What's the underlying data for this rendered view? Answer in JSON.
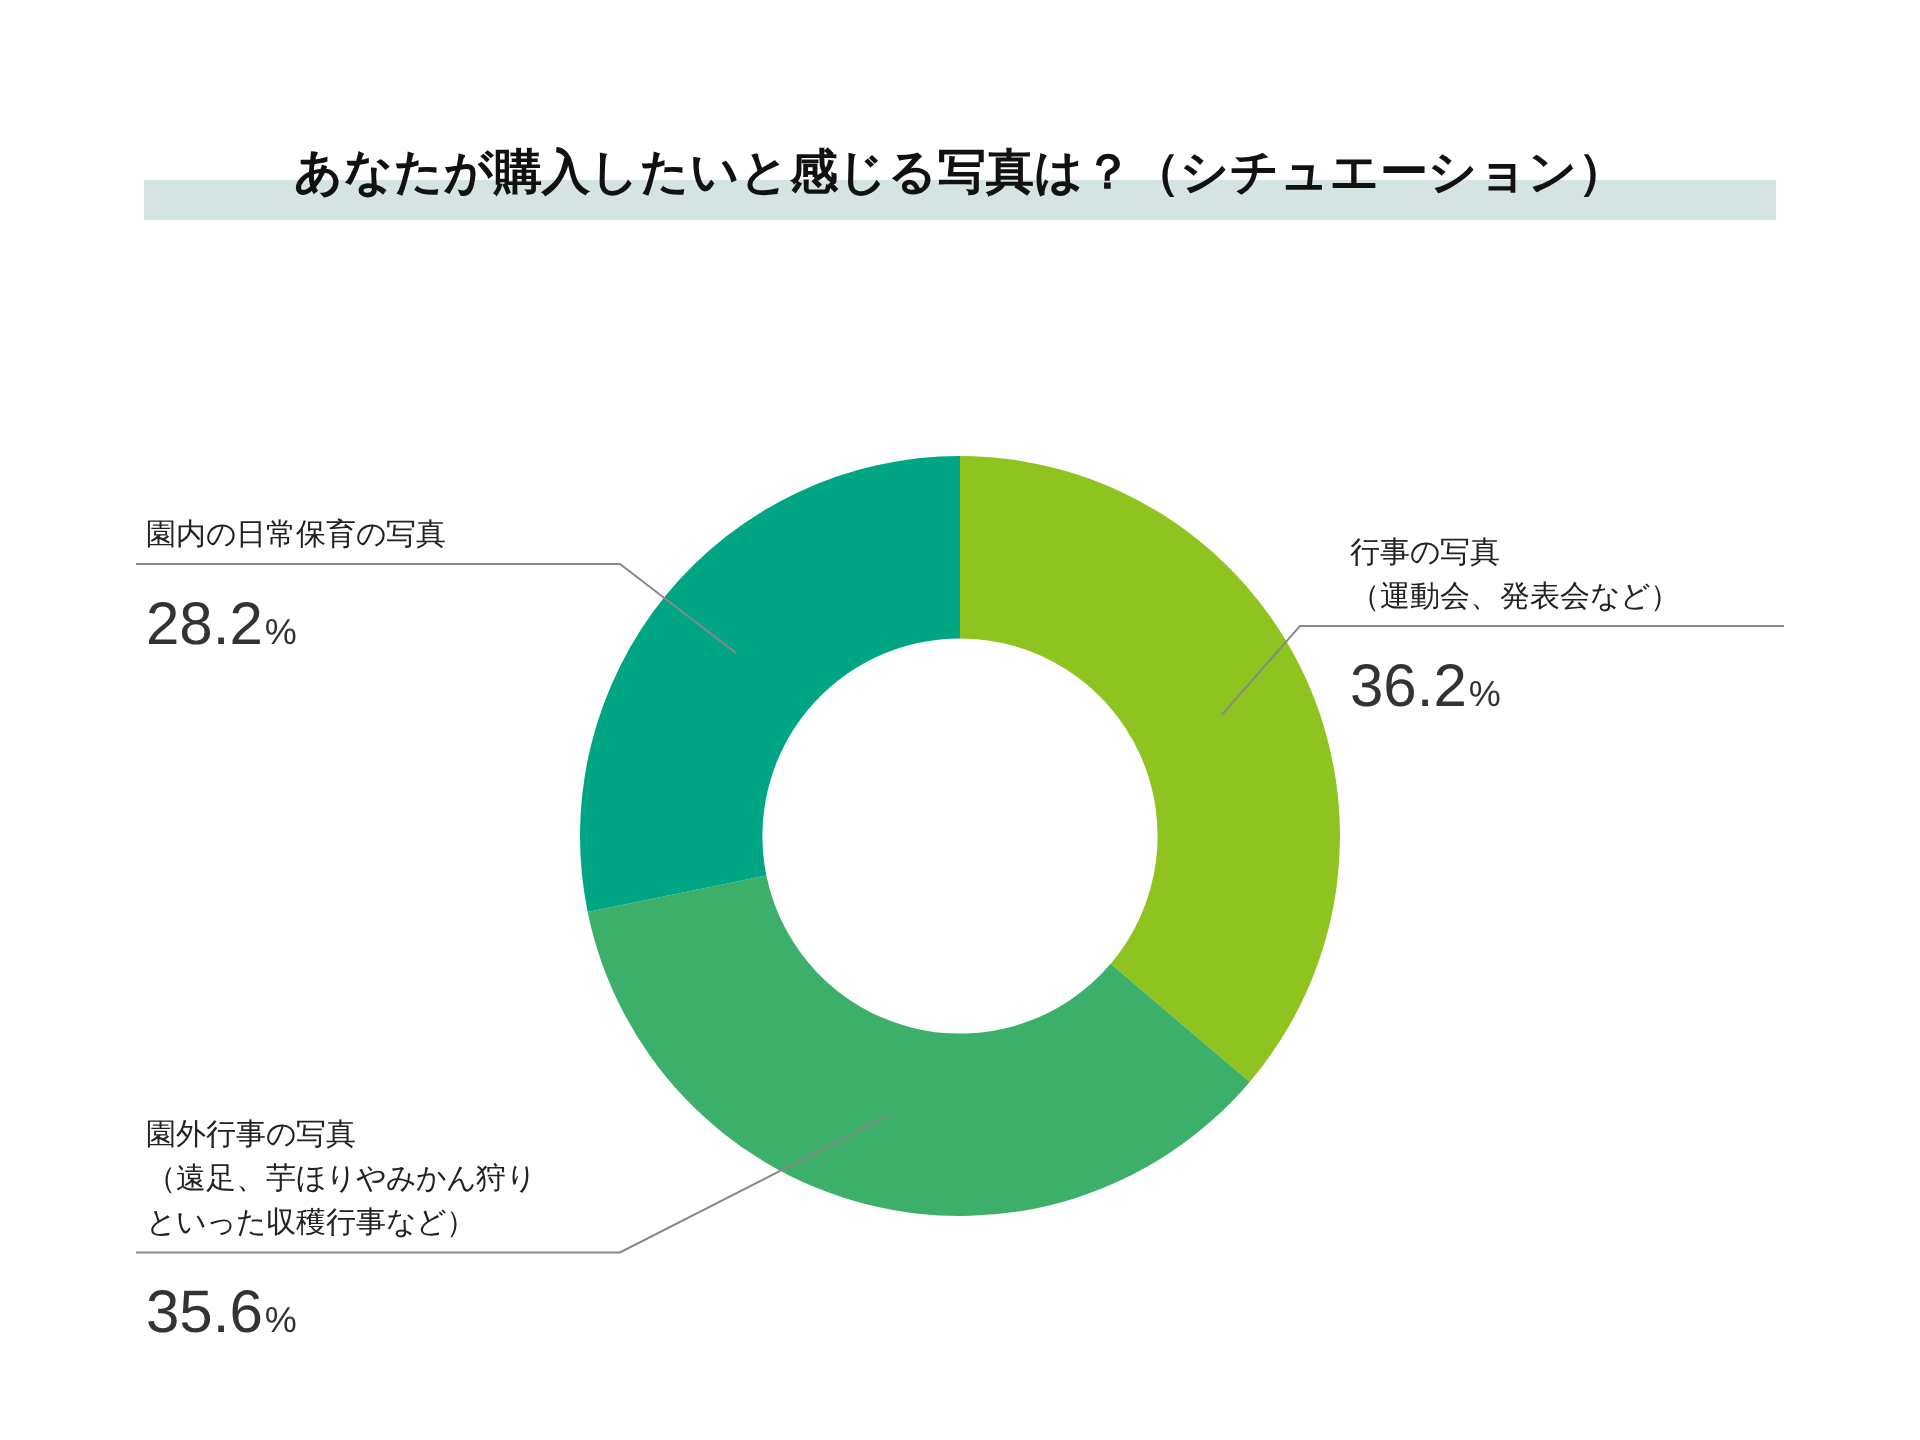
{
  "chart_data": {
    "type": "donut",
    "title": "あなたが購入したいと感じる写真は？（シチュエーション）",
    "categories": [
      "行事の写真（運動会、発表会など）",
      "園外行事の写真（遠足、芋ほりやみかん狩りといった収穫行事など）",
      "園内の日常保育の写真"
    ],
    "values": [
      36.2,
      35.6,
      28.2
    ],
    "colors": [
      "#8fc31f",
      "#3cb06a",
      "#00a683"
    ],
    "value_labels": [
      "36.2%",
      "35.6%",
      "28.2%"
    ],
    "legend": false
  }
}
